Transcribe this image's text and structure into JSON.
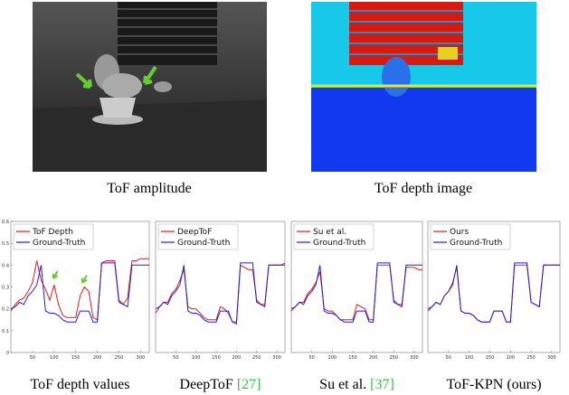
{
  "images": [
    {
      "caption": "ToF amplitude"
    },
    {
      "caption": "ToF depth image"
    }
  ],
  "chart_data": [
    {
      "type": "line",
      "caption": {
        "text": "ToF depth values"
      },
      "x": [
        0,
        10,
        20,
        30,
        40,
        50,
        60,
        70,
        80,
        90,
        100,
        110,
        120,
        130,
        140,
        150,
        160,
        170,
        180,
        190,
        200,
        210,
        220,
        230,
        240,
        250,
        260,
        270,
        280,
        290,
        300,
        310,
        320
      ],
      "xlim": [
        0,
        320
      ],
      "ylim": [
        0,
        0.6
      ],
      "xticks": [
        50,
        100,
        150,
        200,
        250,
        300
      ],
      "yticks": [
        0,
        0.1,
        0.2,
        0.3,
        0.4,
        0.5,
        0.6
      ],
      "legend": "upper left",
      "series": [
        {
          "name": "ToF Depth",
          "color": "#e41a1c",
          "values": [
            0.19,
            0.22,
            0.24,
            0.25,
            0.28,
            0.32,
            0.42,
            0.33,
            0.29,
            0.24,
            0.31,
            0.22,
            0.17,
            0.16,
            0.16,
            0.16,
            0.26,
            0.3,
            0.28,
            0.16,
            0.15,
            0.41,
            0.42,
            0.42,
            0.42,
            0.24,
            0.22,
            0.25,
            0.42,
            0.42,
            0.43,
            0.43,
            0.43
          ]
        },
        {
          "name": "Ground-Truth",
          "color": "#1f1fe0",
          "values": [
            0.2,
            0.21,
            0.23,
            0.22,
            0.26,
            0.28,
            0.31,
            0.4,
            0.19,
            0.18,
            0.18,
            0.17,
            0.15,
            0.14,
            0.14,
            0.14,
            0.19,
            0.19,
            0.19,
            0.14,
            0.14,
            0.41,
            0.41,
            0.41,
            0.41,
            0.23,
            0.22,
            0.21,
            0.4,
            0.4,
            0.4,
            0.4,
            0.4
          ]
        }
      ]
    },
    {
      "type": "line",
      "caption": {
        "text": "DeepToF",
        "citation": "[27]"
      },
      "x": [
        0,
        10,
        20,
        30,
        40,
        50,
        60,
        70,
        80,
        90,
        100,
        110,
        120,
        130,
        140,
        150,
        160,
        170,
        180,
        190,
        200,
        210,
        220,
        230,
        240,
        250,
        260,
        270,
        280,
        290,
        300,
        310,
        320
      ],
      "xlim": [
        0,
        320
      ],
      "ylim": [
        0,
        0.6
      ],
      "xticks": [
        50,
        100,
        150,
        200,
        250,
        300
      ],
      "legend": "upper left",
      "series": [
        {
          "name": "DeepToF",
          "color": "#e41a1c",
          "values": [
            0.18,
            0.21,
            0.23,
            0.23,
            0.27,
            0.29,
            0.33,
            0.38,
            0.21,
            0.2,
            0.2,
            0.18,
            0.16,
            0.15,
            0.15,
            0.15,
            0.21,
            0.2,
            0.18,
            0.14,
            0.13,
            0.4,
            0.39,
            0.38,
            0.38,
            0.24,
            0.22,
            0.22,
            0.4,
            0.4,
            0.4,
            0.4,
            0.41
          ]
        },
        {
          "name": "Ground-Truth",
          "color": "#1f1fe0",
          "values": [
            0.2,
            0.21,
            0.23,
            0.22,
            0.26,
            0.28,
            0.31,
            0.4,
            0.19,
            0.18,
            0.18,
            0.17,
            0.15,
            0.14,
            0.14,
            0.14,
            0.19,
            0.19,
            0.19,
            0.14,
            0.14,
            0.41,
            0.41,
            0.41,
            0.41,
            0.23,
            0.22,
            0.21,
            0.4,
            0.4,
            0.4,
            0.4,
            0.4
          ]
        }
      ]
    },
    {
      "type": "line",
      "caption": {
        "text": "Su et al.",
        "citation": "[37]"
      },
      "x": [
        0,
        10,
        20,
        30,
        40,
        50,
        60,
        70,
        80,
        90,
        100,
        110,
        120,
        130,
        140,
        150,
        160,
        170,
        180,
        190,
        200,
        210,
        220,
        230,
        240,
        250,
        260,
        270,
        280,
        290,
        300,
        310,
        320
      ],
      "xlim": [
        0,
        320
      ],
      "ylim": [
        0,
        0.6
      ],
      "xticks": [
        50,
        100,
        150,
        200,
        250,
        300
      ],
      "legend": "upper left",
      "series": [
        {
          "name": "Su et al.",
          "color": "#e41a1c",
          "values": [
            0.19,
            0.21,
            0.23,
            0.23,
            0.27,
            0.29,
            0.32,
            0.37,
            0.2,
            0.19,
            0.19,
            0.17,
            0.15,
            0.15,
            0.15,
            0.15,
            0.22,
            0.21,
            0.2,
            0.15,
            0.15,
            0.4,
            0.4,
            0.4,
            0.4,
            0.24,
            0.22,
            0.22,
            0.39,
            0.39,
            0.39,
            0.38,
            0.38
          ]
        },
        {
          "name": "Ground-Truth",
          "color": "#1f1fe0",
          "values": [
            0.2,
            0.21,
            0.23,
            0.22,
            0.26,
            0.28,
            0.31,
            0.4,
            0.19,
            0.18,
            0.18,
            0.17,
            0.15,
            0.14,
            0.14,
            0.14,
            0.19,
            0.19,
            0.19,
            0.14,
            0.14,
            0.41,
            0.41,
            0.41,
            0.41,
            0.23,
            0.22,
            0.21,
            0.4,
            0.4,
            0.4,
            0.4,
            0.4
          ]
        }
      ]
    },
    {
      "type": "line",
      "caption": {
        "text": "ToF-KPN (ours)"
      },
      "x": [
        0,
        10,
        20,
        30,
        40,
        50,
        60,
        70,
        80,
        90,
        100,
        110,
        120,
        130,
        140,
        150,
        160,
        170,
        180,
        190,
        200,
        210,
        220,
        230,
        240,
        250,
        260,
        270,
        280,
        290,
        300,
        310,
        320
      ],
      "xlim": [
        0,
        320
      ],
      "ylim": [
        0,
        0.6
      ],
      "xticks": [
        50,
        100,
        150,
        200,
        250,
        300
      ],
      "legend": "upper left",
      "series": [
        {
          "name": "Ours",
          "color": "#e41a1c",
          "values": [
            0.19,
            0.21,
            0.23,
            0.22,
            0.26,
            0.28,
            0.32,
            0.39,
            0.19,
            0.18,
            0.18,
            0.17,
            0.15,
            0.14,
            0.14,
            0.14,
            0.19,
            0.19,
            0.19,
            0.14,
            0.14,
            0.4,
            0.4,
            0.4,
            0.4,
            0.23,
            0.22,
            0.21,
            0.4,
            0.4,
            0.4,
            0.4,
            0.4
          ]
        },
        {
          "name": "Ground-Truth",
          "color": "#1f1fe0",
          "values": [
            0.2,
            0.21,
            0.23,
            0.22,
            0.26,
            0.28,
            0.31,
            0.4,
            0.19,
            0.18,
            0.18,
            0.17,
            0.15,
            0.14,
            0.14,
            0.14,
            0.19,
            0.19,
            0.19,
            0.14,
            0.14,
            0.41,
            0.41,
            0.41,
            0.41,
            0.23,
            0.22,
            0.21,
            0.4,
            0.4,
            0.4,
            0.4,
            0.4
          ]
        }
      ]
    }
  ]
}
